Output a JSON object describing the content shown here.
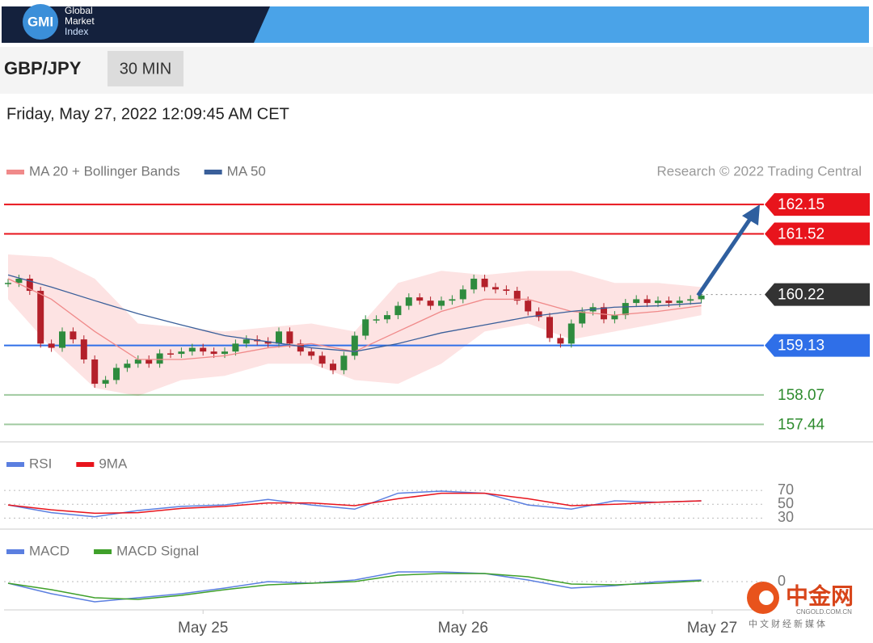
{
  "header": {
    "logo": "GMI",
    "brand_lines": [
      "Global",
      "Market",
      "Index"
    ]
  },
  "toolbar": {
    "symbol": "GBP/JPY",
    "interval": "30 MIN"
  },
  "timestamp": "Friday, May 27, 2022 12:09:45 AM CET",
  "chart_data": {
    "type": "candlestick",
    "copyright": "Research © 2022 Trading Central",
    "up_color": "#2e8b3e",
    "down_color": "#b3202a",
    "xlim": [
      0,
      65
    ],
    "xticks": [
      {
        "value": 18,
        "label": "May 25"
      },
      {
        "value": 42,
        "label": "May 26"
      },
      {
        "value": 65,
        "label": "May 27"
      }
    ],
    "ylim": [
      157.1,
      162.55
    ],
    "closes": [
      160.47,
      160.56,
      160.3,
      159.17,
      159.08,
      159.43,
      159.26,
      158.83,
      158.31,
      158.39,
      158.65,
      158.74,
      158.83,
      158.74,
      158.96,
      158.95,
      159.0,
      159.08,
      159.0,
      158.95,
      159.0,
      159.17,
      159.26,
      159.22,
      159.17,
      159.43,
      159.17,
      159.0,
      158.91,
      158.74,
      158.6,
      158.91,
      159.34,
      159.69,
      159.69,
      159.78,
      159.98,
      160.16,
      160.09,
      159.98,
      160.09,
      160.12,
      160.33,
      160.56,
      160.38,
      160.33,
      160.3,
      160.09,
      159.86,
      159.74,
      159.29,
      159.17,
      159.6,
      159.86,
      159.95,
      159.69,
      159.78,
      160.04,
      160.12,
      160.04,
      160.09,
      160.04,
      160.09,
      160.12,
      160.2
    ],
    "indicator_x": [
      0,
      4,
      8,
      12,
      16,
      20,
      24,
      28,
      32,
      36,
      40,
      44,
      48,
      52,
      56,
      60,
      64
    ],
    "series": [
      {
        "name": "MA 20 + Bollinger Bands",
        "color": "#f08a8a",
        "band_color": "#fde3e3",
        "values": [
          160.56,
          160.12,
          159.43,
          158.83,
          158.83,
          158.91,
          159.08,
          159.17,
          159.0,
          159.43,
          159.86,
          160.12,
          160.12,
          159.86,
          159.78,
          159.86,
          159.98
        ],
        "upper": [
          161.08,
          161.02,
          160.56,
          159.6,
          159.52,
          159.43,
          159.52,
          159.6,
          159.43,
          160.47,
          160.73,
          160.64,
          160.73,
          160.73,
          160.47,
          160.47,
          160.38
        ],
        "lower": [
          160.12,
          159.08,
          158.22,
          158.05,
          158.39,
          158.48,
          158.74,
          158.74,
          158.39,
          158.31,
          158.74,
          159.43,
          159.6,
          159.26,
          159.43,
          159.6,
          159.78
        ]
      },
      {
        "name": "MA 50",
        "color": "#3a5f9a",
        "values": [
          160.64,
          160.38,
          160.09,
          159.81,
          159.57,
          159.34,
          159.21,
          159.08,
          159.0,
          159.17,
          159.4,
          159.57,
          159.74,
          159.86,
          159.95,
          159.98,
          160.04
        ]
      }
    ],
    "levels": [
      {
        "value": 162.15,
        "color": "#e8141c",
        "line_style": "solid",
        "label_style": "box"
      },
      {
        "value": 161.52,
        "color": "#e8141c",
        "line_style": "solid",
        "label_style": "box"
      },
      {
        "value": 160.22,
        "color": "#333333",
        "line_style": "dotted",
        "label_style": "box"
      },
      {
        "value": 159.13,
        "color": "#2f6fe8",
        "line_style": "solid",
        "label_style": "box"
      },
      {
        "value": 158.07,
        "color": "#2e8b2e",
        "line_style": "solid",
        "label_style": "text"
      },
      {
        "value": 157.44,
        "color": "#2e8b2e",
        "line_style": "solid",
        "label_style": "text"
      }
    ],
    "rsi": {
      "ylim": [
        20,
        90
      ],
      "yticks": [
        70,
        50,
        30
      ],
      "series": [
        {
          "name": "RSI",
          "color": "#5b7fe0",
          "values": [
            49,
            38,
            32,
            41,
            47,
            49,
            57,
            49,
            43,
            66,
            69,
            66,
            49,
            43,
            55,
            53,
            55
          ]
        },
        {
          "name": "9MA",
          "color": "#e8141c",
          "values": [
            49,
            42,
            37,
            38,
            44,
            47,
            52,
            52,
            48,
            58,
            66,
            66,
            58,
            48,
            50,
            53,
            55
          ]
        }
      ]
    },
    "macd": {
      "ylim": [
        -0.35,
        0.2
      ],
      "yticks": [
        0
      ],
      "series": [
        {
          "name": "MACD",
          "color": "#5b7fe0",
          "values": [
            -0.02,
            -0.15,
            -0.25,
            -0.2,
            -0.15,
            -0.08,
            0,
            -0.02,
            0.02,
            0.12,
            0.12,
            0.1,
            0.02,
            -0.08,
            -0.05,
            0,
            0.02
          ]
        },
        {
          "name": "MACD Signal",
          "color": "#3fa02a",
          "values": [
            -0.02,
            -0.1,
            -0.2,
            -0.22,
            -0.17,
            -0.1,
            -0.04,
            -0.02,
            0,
            0.08,
            0.1,
            0.1,
            0.06,
            -0.03,
            -0.04,
            -0.02,
            0.01
          ]
        }
      ]
    }
  },
  "watermark": {
    "brand": "中金网",
    "domain": "CNGOLD.COM.CN",
    "tagline": "中文财经新媒体"
  }
}
